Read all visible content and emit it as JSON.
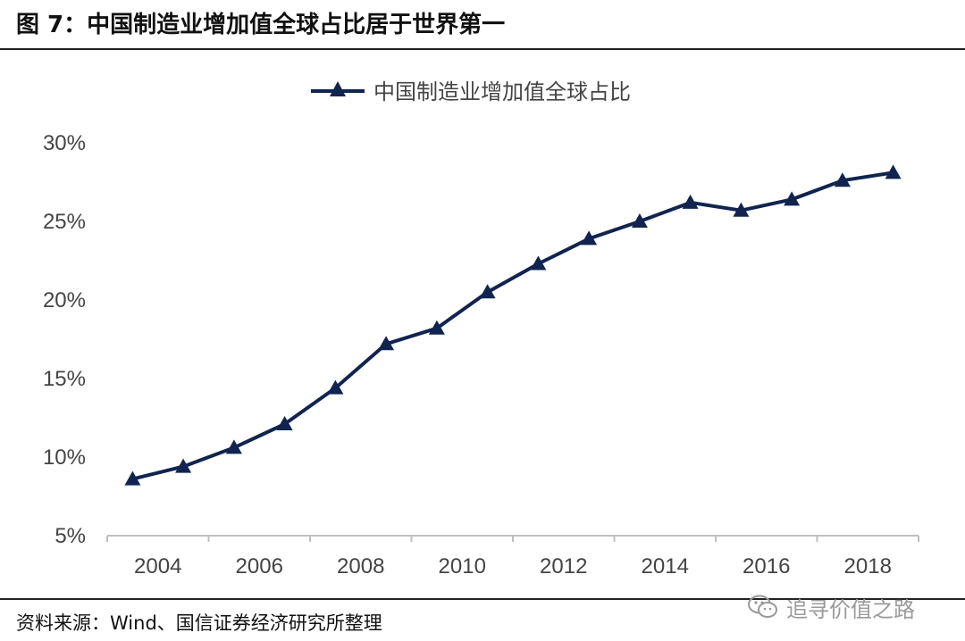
{
  "figure": {
    "title": "图 7：中国制造业增加值全球占比居于世界第一",
    "source": "资料来源：Wind、国信证券经济研究所整理",
    "watermark": "追寻价值之路"
  },
  "chart_data": {
    "type": "line",
    "title": "",
    "xlabel": "",
    "ylabel": "",
    "x": [
      2004,
      2005,
      2006,
      2007,
      2008,
      2009,
      2010,
      2011,
      2012,
      2013,
      2014,
      2015,
      2016,
      2017,
      2018,
      2019
    ],
    "series": [
      {
        "name": "中国制造业增加值全球占比",
        "values": [
          8.6,
          9.4,
          10.6,
          12.1,
          14.4,
          17.2,
          18.2,
          20.5,
          22.3,
          23.9,
          25.0,
          26.2,
          25.7,
          26.4,
          27.6,
          28.1
        ],
        "color": "#10244f",
        "marker": "triangle"
      }
    ],
    "ylim": [
      5,
      30
    ],
    "yticks": [
      "5%",
      "10%",
      "15%",
      "20%",
      "25%",
      "30%"
    ],
    "xticks": [
      "2004",
      "2006",
      "2008",
      "2010",
      "2012",
      "2014",
      "2016",
      "2018"
    ],
    "grid": false,
    "legend": "top-center"
  }
}
